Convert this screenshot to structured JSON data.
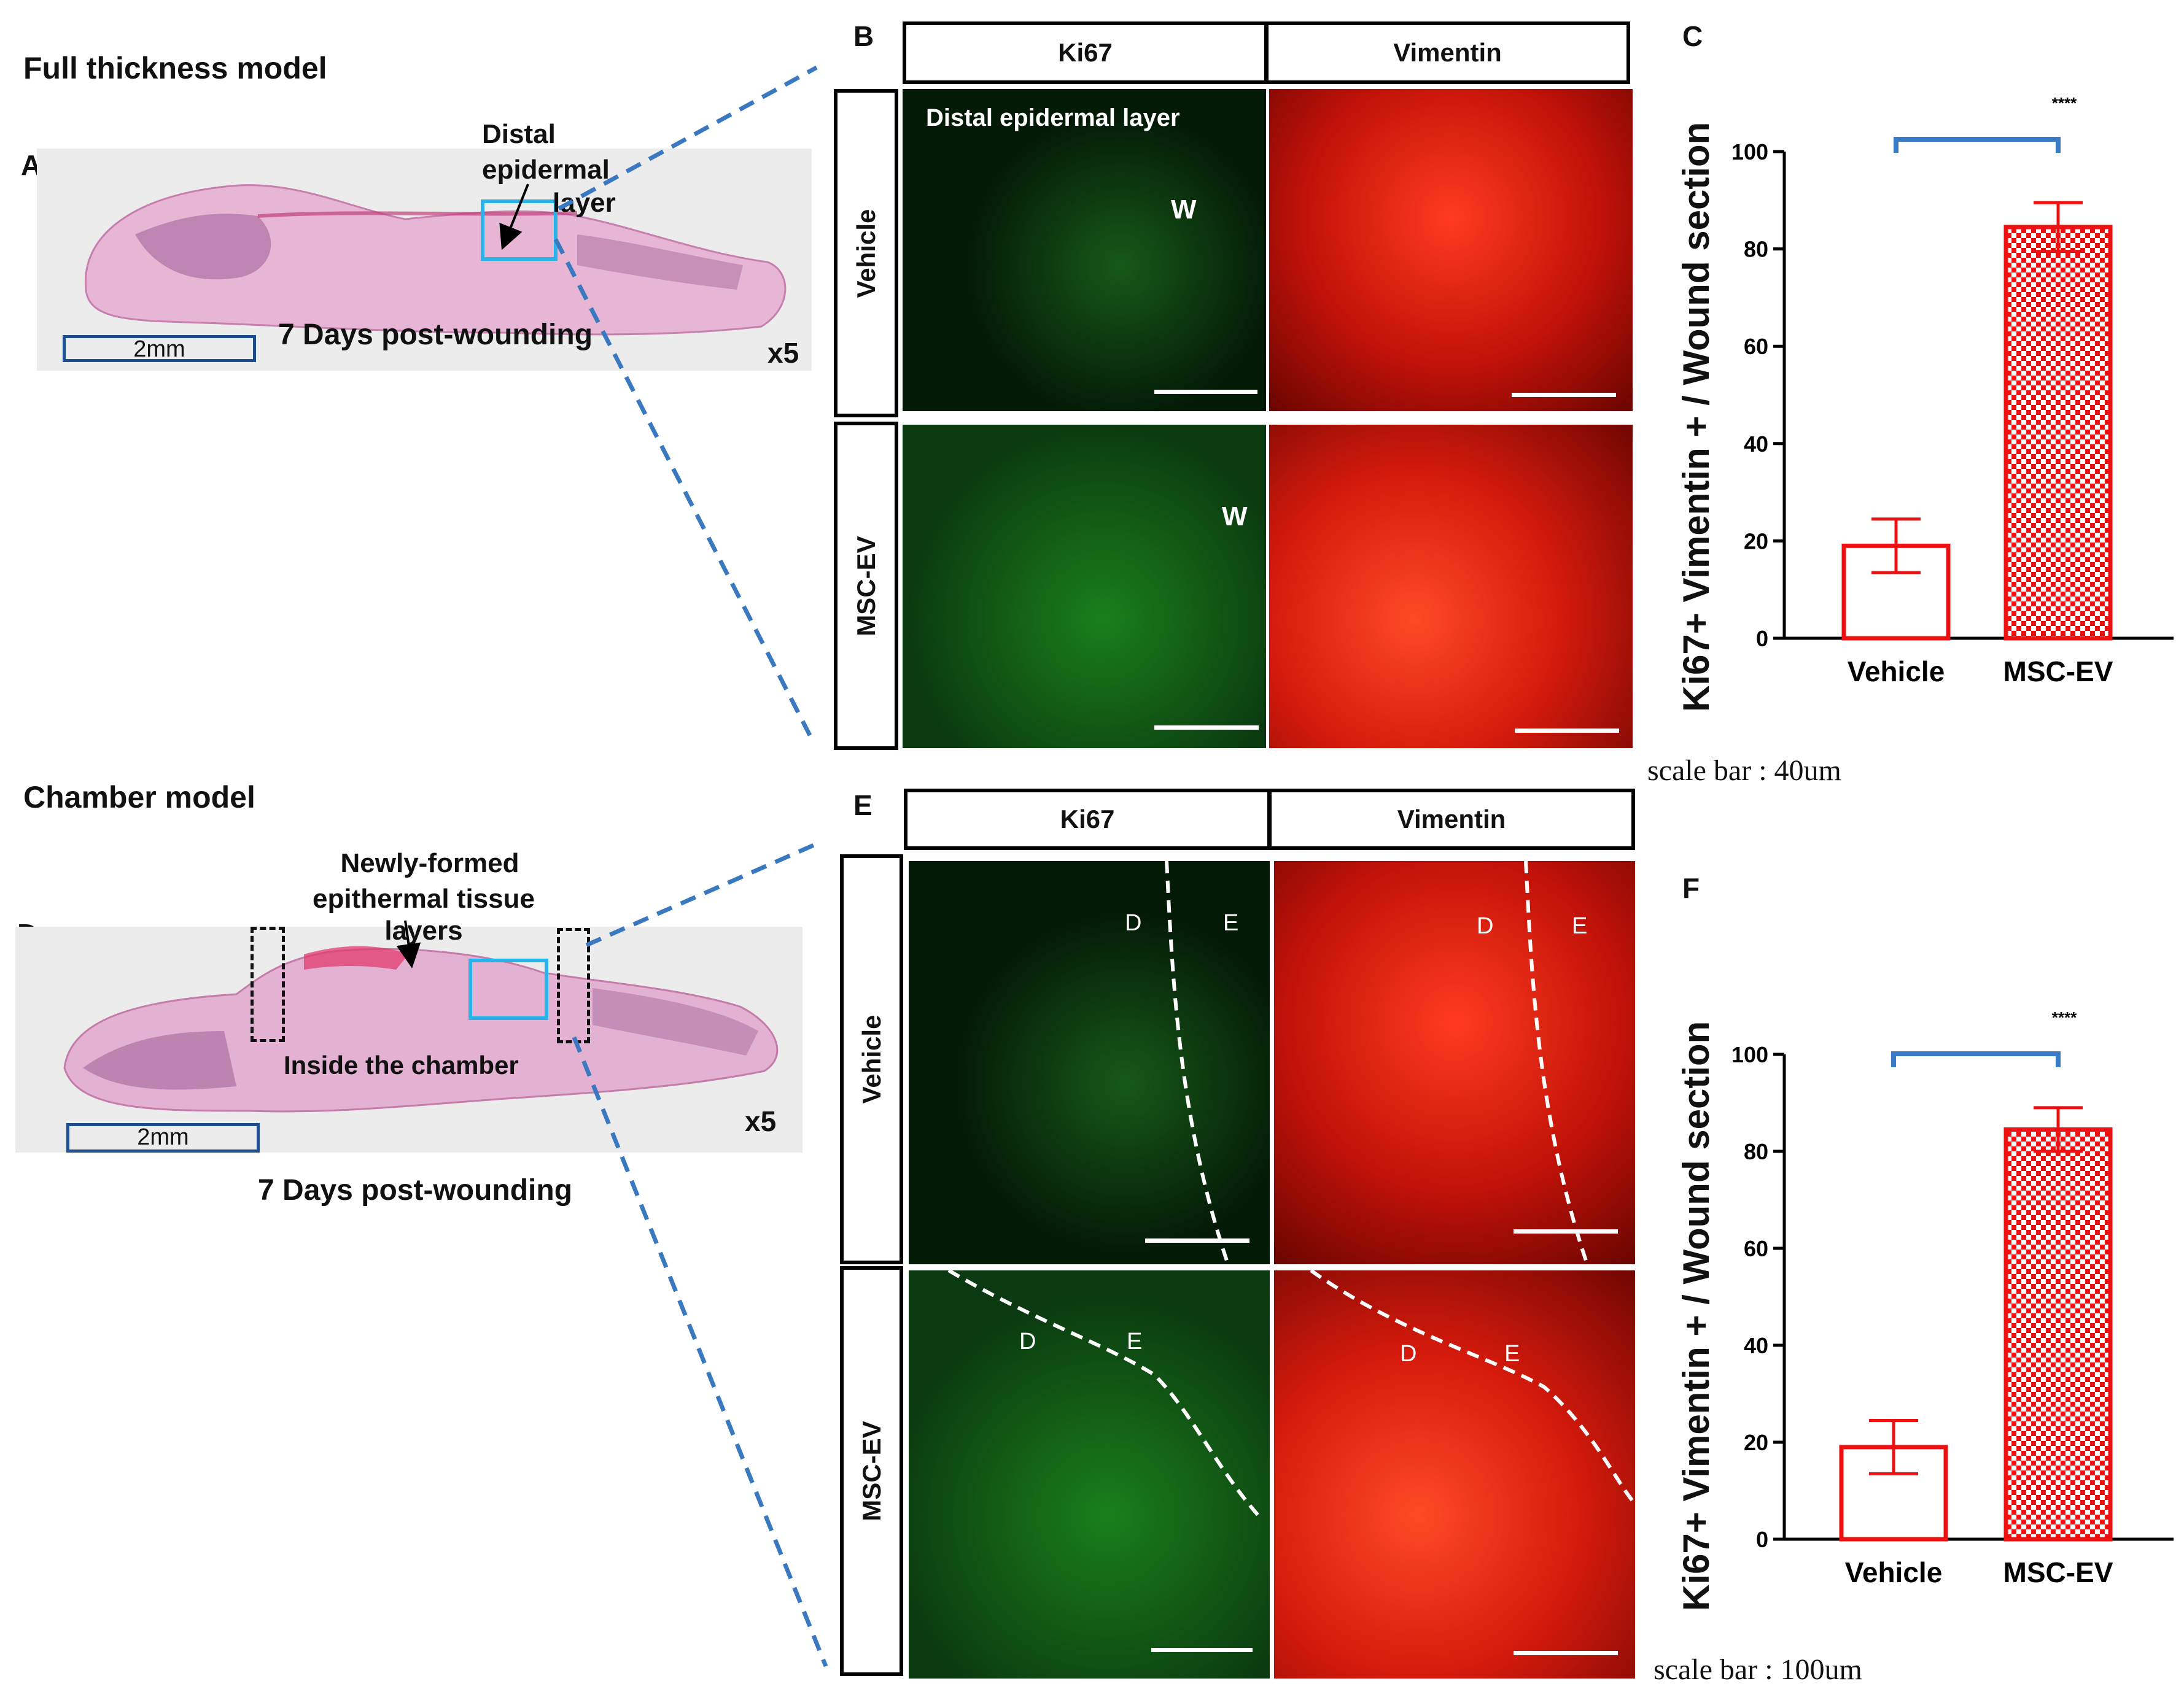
{
  "panels": {
    "A": "A",
    "B": "B",
    "C": "C",
    "D": "D",
    "E": "E",
    "F": "F"
  },
  "section_titles": {
    "full_thickness": "Full thickness model",
    "chamber": "Chamber model"
  },
  "panel_A": {
    "callout_line1": "Distal",
    "callout_line2": "epidermal",
    "callout_line3": "layer",
    "scale": "2mm",
    "timepoint": "7 Days post-wounding",
    "magnification": "x5"
  },
  "panel_D": {
    "callout_line1": "Newly-formed",
    "callout_line2": "epithermal tissue",
    "callout_line3": "layers",
    "inside_label": "Inside the chamber",
    "scale": "2mm",
    "timepoint": "7 Days post-wounding",
    "magnification": "x5"
  },
  "panel_B": {
    "col1": "Ki67",
    "col2": "Vimentin",
    "row1": "Vehicle",
    "row2": "MSC-EV",
    "inset_label": "Distal epidermal layer",
    "w_label": "W"
  },
  "panel_E": {
    "col1": "Ki67",
    "col2": "Vimentin",
    "row1": "Vehicle",
    "row2": "MSC-EV",
    "d_label": "D",
    "e_label": "E"
  },
  "scale_notes": {
    "top": "scale bar : 40um",
    "bottom": "scale bar : 100um"
  },
  "colors": {
    "bar_outline": "#ee1111",
    "significance_bracket": "#3a7bc8",
    "zoom_lines": "#3a78c0",
    "roi_box": "#2ab3e8"
  },
  "chart_data": [
    {
      "type": "bar",
      "panel": "C",
      "categories": [
        "Vehicle",
        "MSC-EV"
      ],
      "values": [
        19,
        84.5
      ],
      "errors": [
        5.5,
        5
      ],
      "ylabel": "Ki67+ Vimentin + / Wound section",
      "ylim": [
        0,
        100
      ],
      "yticks": [
        "0",
        "20",
        "40",
        "60",
        "80",
        "100"
      ],
      "significance": "****"
    },
    {
      "type": "bar",
      "panel": "F",
      "categories": [
        "Vehicle",
        "MSC-EV"
      ],
      "values": [
        19,
        84.5
      ],
      "errors": [
        5.5,
        4.5
      ],
      "ylabel": "Ki67+ Vimentin + / Wound section",
      "ylim": [
        0,
        100
      ],
      "yticks": [
        "0",
        "20",
        "40",
        "60",
        "80",
        "100"
      ],
      "significance": "****"
    }
  ]
}
